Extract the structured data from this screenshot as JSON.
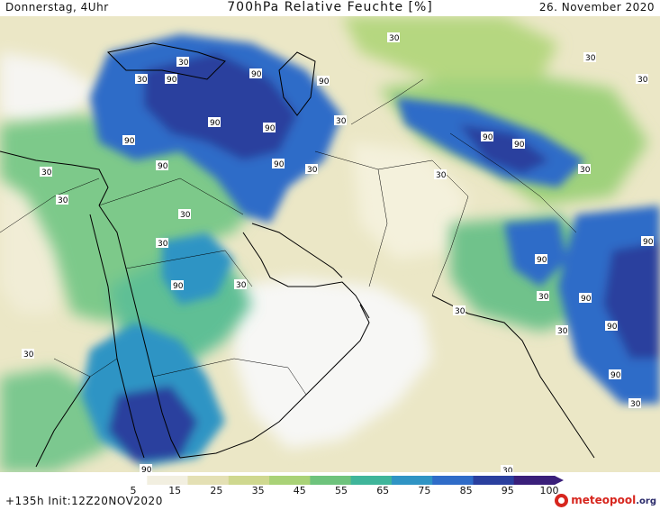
{
  "header": {
    "left": "Donnerstag, 4Uhr",
    "title": "700hPa Relative Feuchte [%]",
    "right": "26. November 2020"
  },
  "footer": {
    "run": "+135h  Init:12Z20NOV2020",
    "brand": "meteopool",
    "brand_tld": ".org"
  },
  "colorbar": {
    "ticks": [
      "5",
      "15",
      "25",
      "35",
      "45",
      "55",
      "65",
      "75",
      "85",
      "95",
      "100"
    ],
    "colors": [
      "#ffffff",
      "#f2efe0",
      "#e4e0b4",
      "#cfd88f",
      "#a9d277",
      "#6ec37c",
      "#3fb59a",
      "#2f94c4",
      "#2f6cc8",
      "#2a3f9e",
      "#3a1f7a"
    ]
  },
  "map": {
    "contour_labels": [
      "30",
      "90"
    ],
    "colors": {
      "land_border": "#000000",
      "water_low": "#f4f4f4"
    }
  }
}
